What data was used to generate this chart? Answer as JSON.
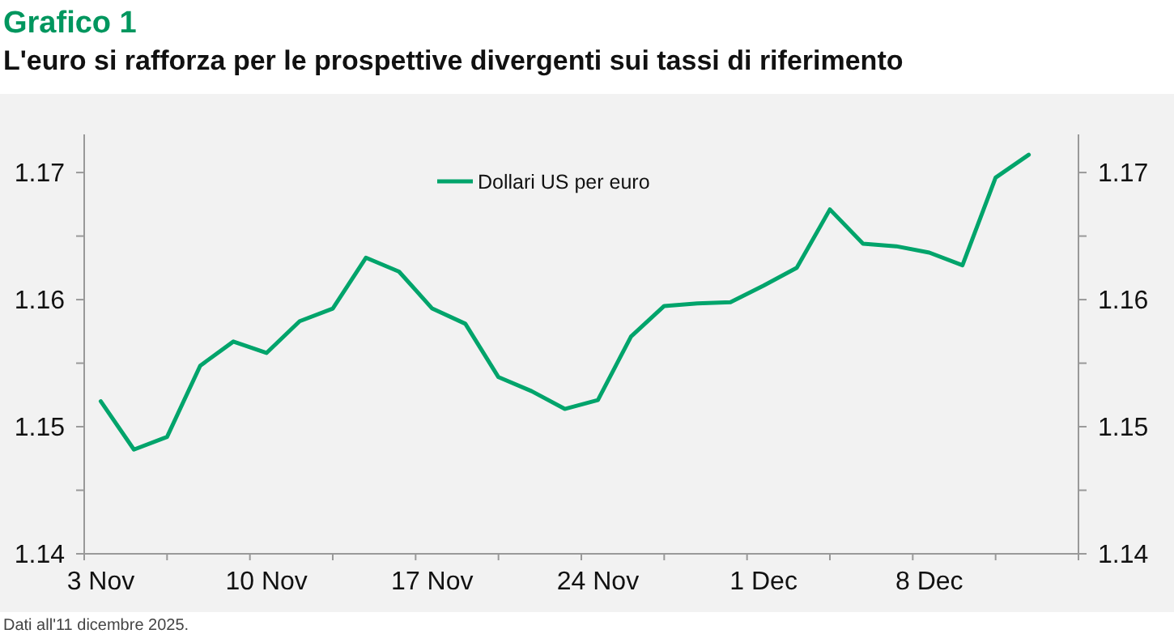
{
  "chart_data": {
    "type": "line",
    "title": "Grafico 1",
    "subtitle": "L'euro si rafforza per le prospettive divergenti sui tassi di riferimento",
    "categories": [
      "3 Nov",
      null,
      null,
      null,
      null,
      "10 Nov",
      null,
      null,
      null,
      null,
      "17 Nov",
      null,
      null,
      null,
      null,
      "24 Nov",
      null,
      null,
      null,
      null,
      "1 Dec",
      null,
      null,
      null,
      null,
      "8 Dec",
      null,
      null,
      null
    ],
    "series": [
      {
        "name": "Dollari US per euro",
        "color": "#00a46b",
        "values": [
          1.152,
          1.1482,
          1.1492,
          1.1548,
          1.1567,
          1.1558,
          1.1583,
          1.1593,
          1.1633,
          1.1622,
          1.1593,
          1.1581,
          1.1539,
          1.1528,
          1.1514,
          1.1521,
          1.1571,
          1.1595,
          1.1597,
          1.1598,
          1.1611,
          1.1625,
          1.1671,
          1.1644,
          1.1642,
          1.1637,
          1.1627,
          1.1696,
          1.1714
        ]
      }
    ],
    "ylim": [
      1.14,
      1.173
    ],
    "yticks": [
      1.14,
      {
        "value": 1.145,
        "label": null
      },
      1.15,
      {
        "value": 1.155,
        "label": null
      },
      1.16,
      {
        "value": 1.165,
        "label": null
      },
      1.17
    ],
    "y2lim": [
      1.14,
      1.173
    ],
    "y2ticks": [
      1.14,
      {
        "value": 1.145,
        "label": null
      },
      1.15,
      {
        "value": 1.155,
        "label": null
      },
      1.16,
      {
        "value": 1.165,
        "label": null
      },
      1.17
    ],
    "legend": "top",
    "grid": false,
    "line_style": "solid",
    "marker": "none",
    "annotations": [
      "Dati all'11 dicembre 2025."
    ]
  }
}
